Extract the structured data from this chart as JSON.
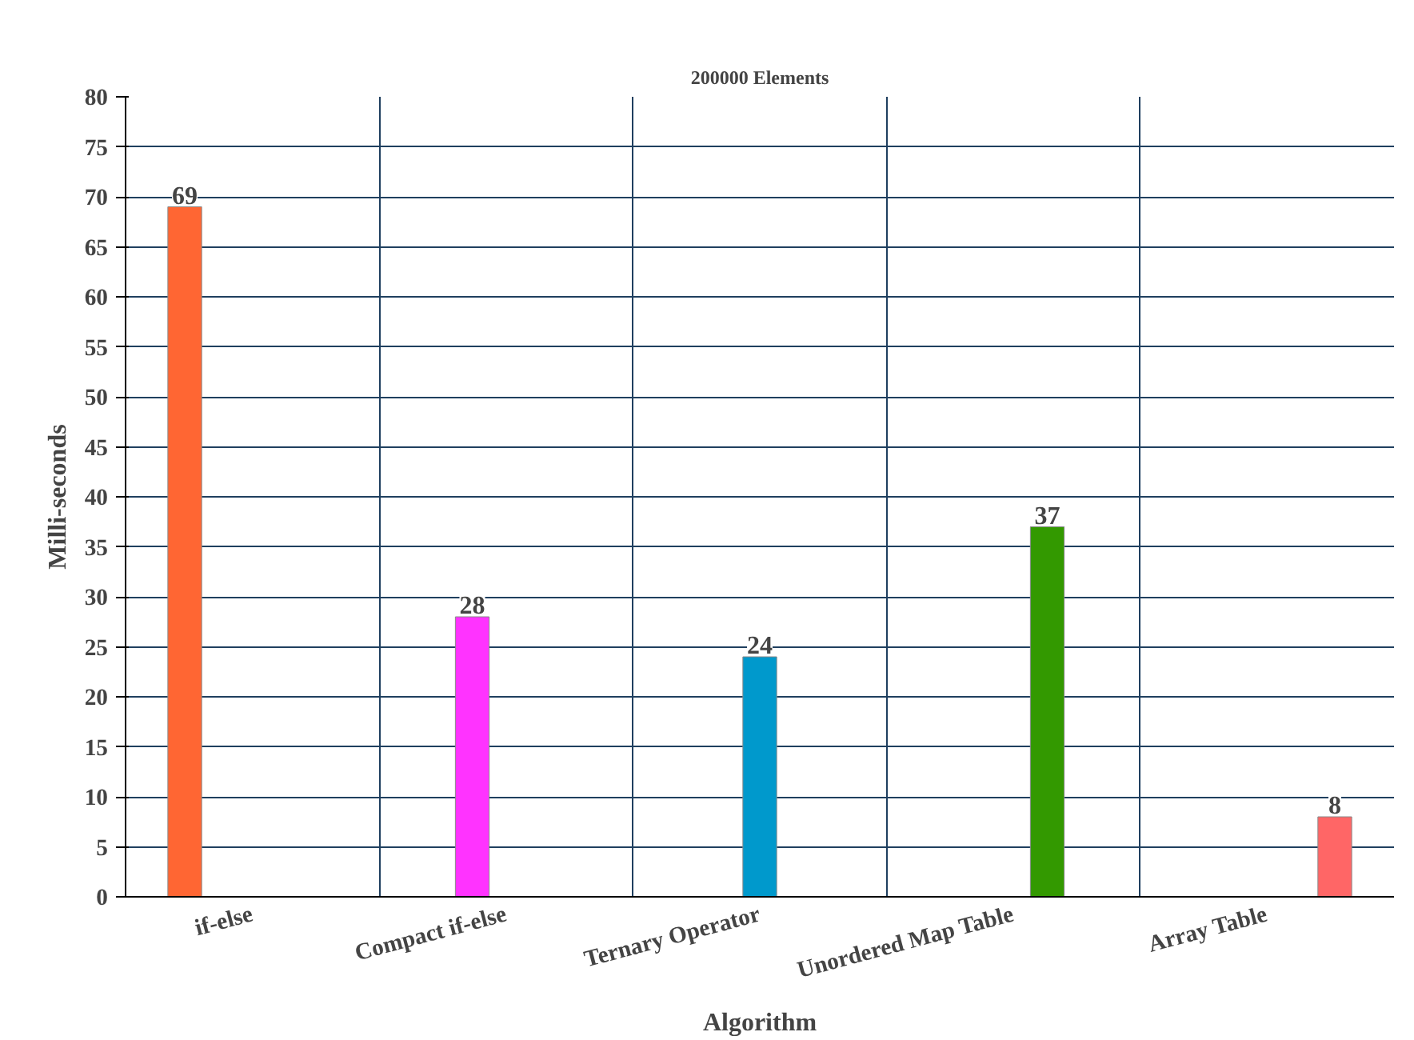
{
  "chart_data": {
    "type": "bar",
    "title": "200000 Elements",
    "xlabel": "Algorithm",
    "ylabel": "Milli-seconds",
    "categories": [
      "if-else",
      "Compact if-else",
      "Ternary Operator",
      "Unordered Map Table",
      "Array Table"
    ],
    "series": [
      {
        "color": "#ff6633",
        "values": [
          69,
          null,
          null,
          null,
          null
        ]
      },
      {
        "color": "#ff33ff",
        "values": [
          null,
          28,
          null,
          null,
          null
        ]
      },
      {
        "color": "#0099cc",
        "values": [
          null,
          null,
          24,
          null,
          null
        ]
      },
      {
        "color": "#339900",
        "values": [
          null,
          null,
          null,
          37,
          null
        ]
      },
      {
        "color": "#ff6666",
        "values": [
          null,
          null,
          null,
          null,
          8
        ]
      }
    ],
    "ylim": [
      0,
      80
    ],
    "yticks": [
      0,
      5,
      10,
      15,
      20,
      25,
      30,
      35,
      40,
      45,
      50,
      55,
      60,
      65,
      70,
      75,
      80
    ],
    "grid": true,
    "data_labels": true
  }
}
